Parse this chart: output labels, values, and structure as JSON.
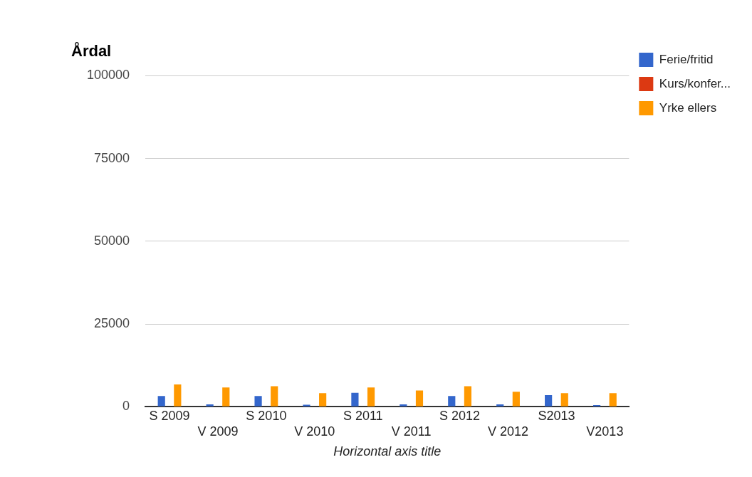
{
  "chart_data": {
    "type": "bar",
    "title": "Årdal",
    "xlabel": "Horizontal axis title",
    "categories": [
      "S 2009",
      "V 2009",
      "S 2010",
      "V 2010",
      "S 2011",
      "V 2011",
      "S 2012",
      "V 2012",
      "S2013",
      "V2013"
    ],
    "series": [
      {
        "name": "Ferie/fritid",
        "color": "#3366cc",
        "values": [
          3200,
          700,
          3200,
          600,
          4200,
          700,
          3200,
          700,
          3500,
          500
        ]
      },
      {
        "name": "Kurs/konfer...",
        "color": "#dc3912",
        "values": [
          0,
          0,
          0,
          0,
          0,
          0,
          0,
          0,
          0,
          0
        ]
      },
      {
        "name": "Yrke ellers",
        "color": "#ff9900",
        "values": [
          6700,
          5800,
          6200,
          4100,
          5800,
          4900,
          6200,
          4500,
          4100,
          4100
        ]
      }
    ],
    "ylim": [
      0,
      100000
    ],
    "yticks": [
      0,
      25000,
      50000,
      75000,
      100000
    ],
    "grid": "y",
    "legend": "right"
  }
}
